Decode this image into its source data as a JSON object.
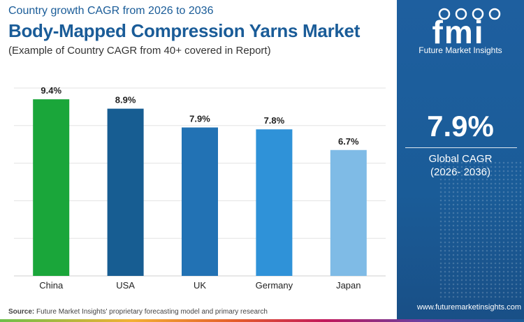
{
  "header": {
    "subtitle": "Country growth CAGR from 2026 to 2036",
    "title": "Body-Mapped Compression Yarns Market",
    "note": "(Example of Country CAGR from 40+ covered in Report)"
  },
  "footer": {
    "source_label": "Source:",
    "source_text": "Future Market Insights' proprietary forecasting model and primary research"
  },
  "sidebar": {
    "logo_mark": "fmi",
    "logo_name": "Future Market Insights",
    "metric_value": "7.9%",
    "metric_label": "Global CAGR",
    "metric_period": "(2026- 2036)",
    "website": "www.futuremarketinsights.com"
  },
  "colors": {
    "brand_blue": "#1a5c98",
    "china": "#1aa63a",
    "usa": "#175d92",
    "uk": "#2272b4",
    "germany": "#2f92d8",
    "japan": "#7fbbe6"
  },
  "chart_data": {
    "type": "bar",
    "categories": [
      "China",
      "USA",
      "UK",
      "Germany",
      "Japan"
    ],
    "values": [
      9.4,
      8.9,
      7.9,
      7.8,
      6.7
    ],
    "value_labels": [
      "9.4%",
      "8.9%",
      "7.9%",
      "7.8%",
      "6.7%"
    ],
    "bar_colors": [
      "#1aa63a",
      "#175d92",
      "#2272b4",
      "#2f92d8",
      "#7fbbe6"
    ],
    "ylim": [
      0,
      10
    ],
    "grid": true,
    "title": "",
    "xlabel": "",
    "ylabel": ""
  }
}
